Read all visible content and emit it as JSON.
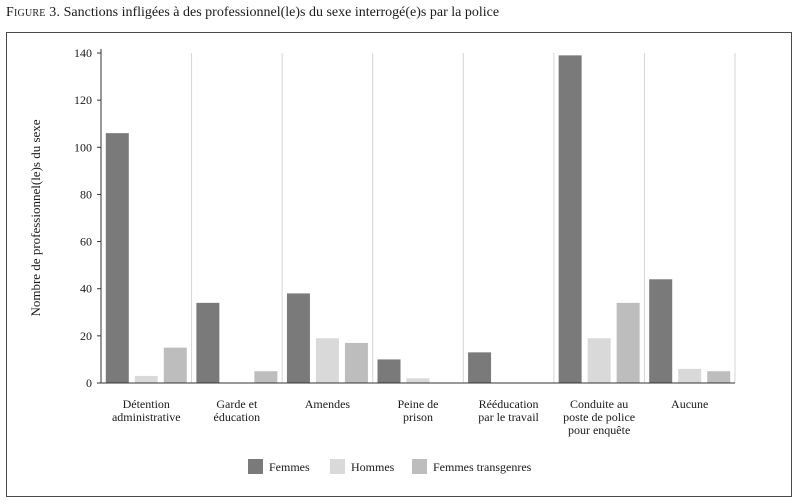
{
  "figure": {
    "label": "Figure 3.",
    "title": "Sanctions infligées à des professionnel(le)s du sexe  interrogé(e)s par la police"
  },
  "chart_data": {
    "type": "bar",
    "title": "Sanctions infligées à des professionnel(le)s du sexe  interrogé(e)s par la police",
    "xlabel": "",
    "ylabel": "Nombre de professionnel(le)s du sexe",
    "ylim": [
      0,
      140
    ],
    "yticks": [
      0,
      20,
      40,
      60,
      80,
      100,
      120,
      140
    ],
    "grid": "vertical category separators",
    "legend_position": "bottom",
    "categories": [
      [
        "Détention",
        "administrative"
      ],
      [
        "Garde et",
        "éducation"
      ],
      [
        "Amendes"
      ],
      [
        "Peine de",
        "prison"
      ],
      [
        "Rééducation",
        "par le travail"
      ],
      [
        "Conduite au",
        "poste de police",
        "pour enquête"
      ],
      [
        "Aucune"
      ]
    ],
    "series": [
      {
        "name": "Femmes",
        "color": "#7a7a7a",
        "values": [
          106,
          34,
          38,
          10,
          13,
          139,
          44
        ]
      },
      {
        "name": "Hommes",
        "color": "#d9d9d9",
        "values": [
          3,
          0,
          19,
          2,
          0,
          19,
          6
        ]
      },
      {
        "name": "Femmes transgenres",
        "color": "#bdbdbd",
        "values": [
          15,
          5,
          17,
          0,
          0,
          34,
          5
        ]
      }
    ]
  }
}
